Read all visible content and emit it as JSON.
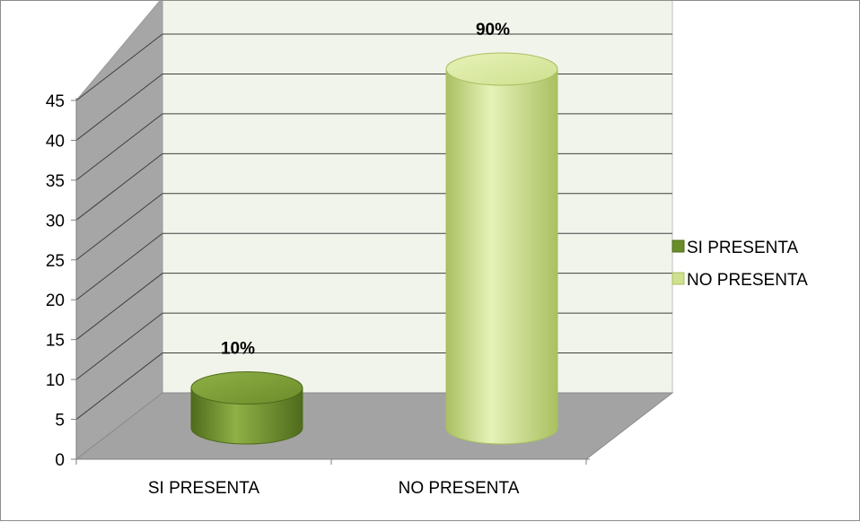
{
  "chart_data": {
    "type": "bar",
    "style": "3d-cylinder",
    "categories": [
      "SI PRESENTA",
      "NO PRESENTA"
    ],
    "values": [
      5,
      45
    ],
    "data_labels": [
      "10%",
      "90%"
    ],
    "ylim": [
      0,
      45
    ],
    "yticks": [
      0,
      5,
      10,
      15,
      20,
      25,
      30,
      35,
      40,
      45
    ],
    "grid": true,
    "legend": {
      "position": "right",
      "entries": [
        "SI PRESENTA",
        "NO PRESENTA"
      ]
    },
    "colors": [
      "#6b8c2a",
      "#cfe08e"
    ],
    "colors_dark": [
      "#4f6b1c",
      "#a9c061"
    ],
    "colors_light": [
      "#8fb046",
      "#e6f2b8"
    ],
    "wall_color": "#f1f4ea",
    "side_wall_color": "#a6a6a6",
    "floor_color": "#a3a3a3"
  }
}
